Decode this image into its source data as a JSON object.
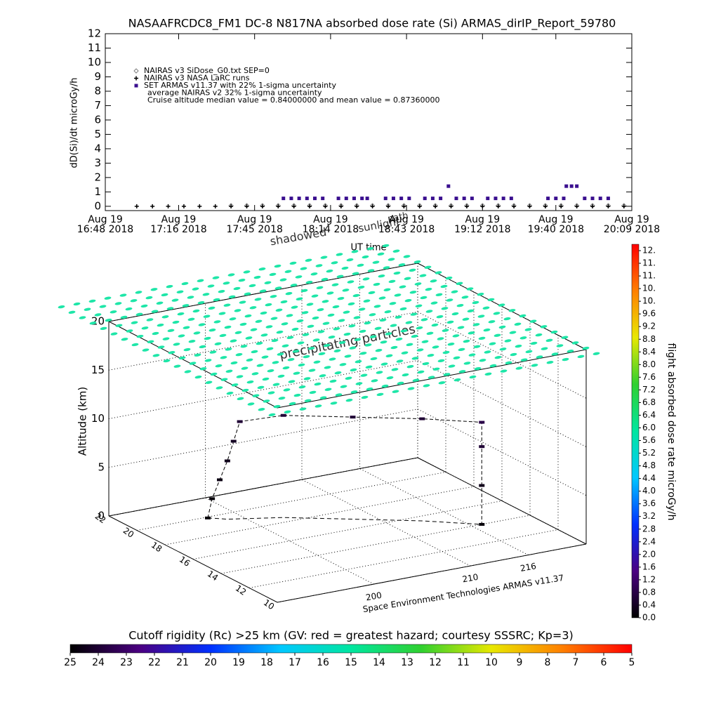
{
  "chart_data": [
    {
      "type": "scatter",
      "title": "NASAAFRCDC8_FM1 DC-8   N817NA absorbed dose rate (Si) ARMAS_dirIP_Report_59780",
      "ylabel": "dD(Si)/dt microGy/h",
      "xlabel": "UT time",
      "xlim": [
        "16:48",
        "20:09"
      ],
      "xticks": [
        {
          "value": "16:48",
          "label": "Aug 19\n16:48 2018"
        },
        {
          "value": "17:16",
          "label": "Aug 19\n17:16 2018"
        },
        {
          "value": "17:45",
          "label": "Aug 19\n17:45 2018"
        },
        {
          "value": "18:14",
          "label": "Aug 19\n18:14 2018"
        },
        {
          "value": "18:43",
          "label": "Aug 19\n18:43 2018"
        },
        {
          "value": "19:12",
          "label": "Aug 19\n19:12 2018"
        },
        {
          "value": "19:40",
          "label": "Aug 19\n19:40 2018"
        },
        {
          "value": "20:09",
          "label": "Aug 19\n20:09 2018"
        }
      ],
      "ylim": [
        -0.3,
        12
      ],
      "yticks": [
        0,
        1,
        2,
        3,
        4,
        5,
        6,
        7,
        8,
        9,
        10,
        11,
        12
      ],
      "series": [
        {
          "name": "NAIRAS v3 SiDose_G0.txt SEP=0",
          "color": "#808080",
          "marker": "diamond",
          "x": [
            "17:36",
            "17:42",
            "17:48",
            "17:54",
            "18:00",
            "18:06",
            "18:12",
            "18:18",
            "18:24",
            "18:30",
            "18:36",
            "18:42",
            "18:48",
            "18:54",
            "19:00",
            "19:06",
            "19:12",
            "19:18",
            "19:24",
            "19:30",
            "19:36",
            "19:42",
            "19:48",
            "19:54",
            "20:00",
            "20:06"
          ],
          "values": [
            0.05,
            0.05,
            0.05,
            0.05,
            0.05,
            0.05,
            0.05,
            0.05,
            0.05,
            0.05,
            0.05,
            0.05,
            0.05,
            0.05,
            0.05,
            0.05,
            0.05,
            0.05,
            0.05,
            0.05,
            0.05,
            0.05,
            0.05,
            0.05,
            0.05,
            0.05
          ]
        },
        {
          "name": "NAIRAS v3 NASA LaRC runs",
          "color": "#000000",
          "marker": "plus",
          "x": [
            "17:00",
            "17:06",
            "17:12",
            "17:18",
            "17:24",
            "17:30",
            "17:36",
            "17:42",
            "17:48",
            "17:54",
            "18:00",
            "18:06",
            "18:12",
            "18:18",
            "18:24",
            "18:30",
            "18:36",
            "18:42",
            "18:48",
            "18:54",
            "19:00",
            "19:06",
            "19:12",
            "19:18",
            "19:24",
            "19:30",
            "19:36",
            "19:42",
            "19:48",
            "19:54",
            "20:00",
            "20:06"
          ],
          "values": [
            0,
            0,
            0,
            0,
            0,
            0,
            0,
            0,
            0,
            0,
            0,
            0,
            0,
            0,
            0,
            0,
            0,
            0,
            0,
            0,
            0,
            0,
            0,
            0,
            0,
            0,
            0,
            0,
            0,
            0,
            0,
            0
          ]
        },
        {
          "name": "SET ARMAS v11.37 with 22% 1-sigma uncertainty",
          "color": "#3a0f8f",
          "marker": "square",
          "x": [
            "17:56",
            "17:59",
            "18:02",
            "18:05",
            "18:08",
            "18:11",
            "18:17",
            "18:20",
            "18:23",
            "18:26",
            "18:28",
            "18:35",
            "18:38",
            "18:41",
            "18:44",
            "18:50",
            "18:53",
            "18:56",
            "18:59",
            "19:02",
            "19:05",
            "19:08",
            "19:14",
            "19:17",
            "19:20",
            "19:23",
            "19:37",
            "19:40",
            "19:43",
            "19:44",
            "19:46",
            "19:48",
            "19:51",
            "19:54",
            "19:57",
            "20:00"
          ],
          "values": [
            0.55,
            0.55,
            0.55,
            0.55,
            0.55,
            0.55,
            0.55,
            0.55,
            0.55,
            0.55,
            0.55,
            0.55,
            0.55,
            0.55,
            0.55,
            0.55,
            0.55,
            0.55,
            1.4,
            0.55,
            0.55,
            0.55,
            0.55,
            0.55,
            0.55,
            0.55,
            0.55,
            0.55,
            0.55,
            1.4,
            1.4,
            1.4,
            0.55,
            0.55,
            0.55,
            0.55
          ]
        }
      ],
      "annotations": [
        "average NAIRAS v2 32% 1-sigma uncertainty",
        "Cruise altitude median value = 0.84000000 and mean value = 0.87360000"
      ]
    },
    {
      "type": "scatter3d",
      "zlabel": "Altitude (km)",
      "credit": "Space Environment Technologies ARMAS v11.37",
      "annotations": [
        "precipitating particles",
        "shadowed",
        "sunlight",
        "path"
      ],
      "xlim": [
        190,
        222
      ],
      "xticks": [
        200,
        210,
        216
      ],
      "ylim": [
        10,
        22
      ],
      "yticks": [
        10,
        12,
        14,
        16,
        18,
        20,
        22
      ],
      "zlim": [
        0,
        20
      ],
      "zticks": [
        0,
        5,
        10,
        15,
        20
      ],
      "precipitation_color": "#1ee6a8",
      "path": {
        "lon": [
          197.2,
          197.5,
          198,
          198.5,
          199,
          199.5,
          203,
          208,
          213,
          217,
          217,
          217,
          217
        ],
        "lat": [
          19.9,
          19.8,
          19.6,
          19.4,
          19.3,
          19.2,
          18.5,
          17,
          15.5,
          14,
          14,
          14,
          14
        ],
        "alt": [
          0,
          2,
          4,
          6,
          8,
          10,
          10.5,
          10.5,
          10.5,
          10.5,
          8,
          4,
          0
        ],
        "dose": [
          0.1,
          0.1,
          0.2,
          0.3,
          0.4,
          0.6,
          0.6,
          0.6,
          0.6,
          0.8,
          0.6,
          0.3,
          0.1
        ]
      }
    },
    {
      "type": "colorbar",
      "orientation": "vertical",
      "title": "flight absorbed dose rate microGy/h",
      "lim": [
        0,
        11.8
      ],
      "ticks": [
        {
          "value": 0,
          "label": "0.0"
        },
        0.4,
        0.8,
        1.2,
        1.6,
        {
          "value": 2,
          "label": "2.0"
        },
        2.4,
        2.8,
        3.2,
        3.6,
        {
          "value": 4,
          "label": "4.0"
        },
        4.4,
        4.8,
        5.2,
        5.6,
        {
          "value": 6,
          "label": "6.0"
        },
        6.4,
        6.8,
        7.2,
        7.6,
        {
          "value": 8,
          "label": "8.0"
        },
        8.4,
        8.8,
        9.2,
        9.6,
        {
          "value": 10,
          "label": "10."
        },
        {
          "value": 10.4,
          "label": "10."
        },
        {
          "value": 10.8,
          "label": "11."
        },
        {
          "value": 11.2,
          "label": "11."
        },
        {
          "value": 11.6,
          "label": "12."
        }
      ],
      "colors": [
        "#000000",
        "#4b0082",
        "#0030ff",
        "#00c8ff",
        "#00e6a0",
        "#30d030",
        "#e8e800",
        "#ff8000",
        "#ff0000"
      ]
    },
    {
      "type": "colorbar",
      "orientation": "horizontal",
      "title": "Cutoff rigidity (Rc) >25 km (GV: red = greatest hazard; courtesy SSSRC; Kp=3)",
      "lim": [
        25,
        5
      ],
      "ticks": [
        25,
        24,
        23,
        22,
        21,
        20,
        19,
        18,
        17,
        16,
        15,
        14,
        13,
        12,
        11,
        10,
        9,
        8,
        7,
        6,
        5
      ],
      "colors": [
        "#000000",
        "#4b0082",
        "#0030ff",
        "#00c8ff",
        "#00e6a0",
        "#30d030",
        "#e8e800",
        "#ff8000",
        "#ff0000"
      ]
    }
  ]
}
